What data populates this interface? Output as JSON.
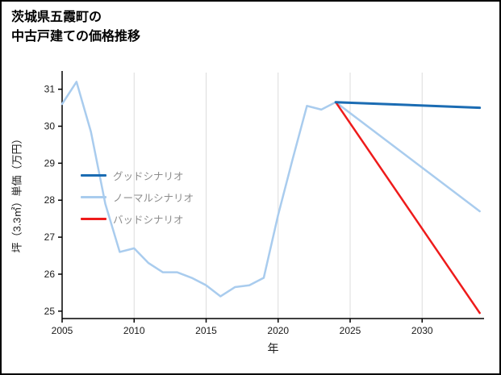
{
  "chart_data": {
    "type": "line",
    "title": "茨城県五霞町の\n中古戸建ての価格推移",
    "xlabel": "年",
    "ylabel": "坪（3.3㎡）単価（万円）",
    "x_ticks": [
      2005,
      2010,
      2015,
      2020,
      2025,
      2030
    ],
    "y_ticks": [
      25,
      26,
      27,
      28,
      29,
      30,
      31
    ],
    "xlim": [
      2005,
      2034.3
    ],
    "ylim": [
      24.8,
      31.45
    ],
    "grid": "vertical-only",
    "legend_position": "center-left",
    "axis_color": "#000000",
    "grid_color": "#dcdcdc",
    "series": [
      {
        "name": "グッドシナリオ",
        "color": "#1b6cb3",
        "x": [
          2024,
          2034
        ],
        "values": [
          30.65,
          30.5
        ]
      },
      {
        "name": "ノーマルシナリオ",
        "color": "#a9ccee",
        "x": [
          2005,
          2006,
          2007,
          2008,
          2009,
          2010,
          2011,
          2012,
          2013,
          2014,
          2015,
          2016,
          2017,
          2018,
          2019,
          2020,
          2021,
          2022,
          2023,
          2024,
          2034
        ],
        "values": [
          30.6,
          31.2,
          29.85,
          27.9,
          26.6,
          26.7,
          26.3,
          26.05,
          26.05,
          25.9,
          25.7,
          25.4,
          25.65,
          25.7,
          25.9,
          27.6,
          29.1,
          30.55,
          30.45,
          30.65,
          27.7
        ]
      },
      {
        "name": "バッドシナリオ",
        "color": "#ee1b1b",
        "x": [
          2024,
          2034
        ],
        "values": [
          30.65,
          24.95
        ]
      }
    ]
  }
}
